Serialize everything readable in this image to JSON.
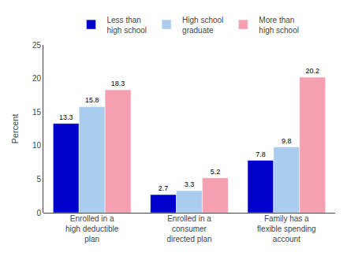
{
  "chart_data": {
    "type": "bar",
    "categories": [
      "Enrolled in a\nhigh deductible\nplan",
      "Enrolled in a\nconsumer\ndirected plan",
      "Family has a\nflexible spending\naccount"
    ],
    "series": [
      {
        "name": "Less than\nhigh school",
        "color": "#0000CC",
        "values": [
          13.3,
          2.7,
          7.8
        ]
      },
      {
        "name": "High school\ngraduate",
        "color": "#AACCEE",
        "values": [
          15.8,
          3.3,
          9.8
        ]
      },
      {
        "name": "More than\nhigh school",
        "color": "#F4A0B0",
        "values": [
          18.3,
          5.2,
          20.2
        ]
      }
    ],
    "ylabel": "Percent",
    "ylim": [
      0,
      25
    ],
    "yticks": [
      0,
      5,
      10,
      15,
      20,
      25
    ],
    "data_labels": true,
    "grid": false,
    "legend": "top"
  }
}
